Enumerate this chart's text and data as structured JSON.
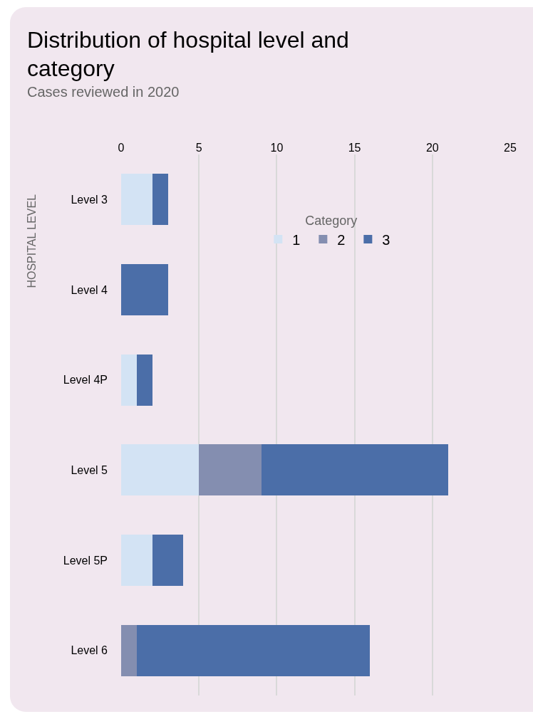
{
  "chart_data": {
    "type": "bar",
    "orientation": "horizontal",
    "stacked": true,
    "title": "Distribution of hospital level and category",
    "subtitle": "Cases reviewed in 2020",
    "ylabel": "HOSPITAL LEVEL",
    "legend_title": "Category",
    "legend": "top",
    "categories": [
      "Level 3",
      "Level 4",
      "Level 4P",
      "Level 5",
      "Level 5P",
      "Level 6"
    ],
    "series": [
      {
        "name": "1",
        "color": "#d3e3f4",
        "values": [
          2,
          0,
          1,
          5,
          2,
          0
        ]
      },
      {
        "name": "2",
        "color": "#848eb0",
        "values": [
          0,
          0,
          0,
          4,
          0,
          1
        ]
      },
      {
        "name": "3",
        "color": "#4b6ea8",
        "values": [
          1,
          3,
          1,
          12,
          2,
          15
        ]
      }
    ],
    "xlim": [
      0,
      25
    ],
    "xticks": [
      0,
      5,
      10,
      15,
      20,
      25
    ],
    "grid": "x"
  }
}
